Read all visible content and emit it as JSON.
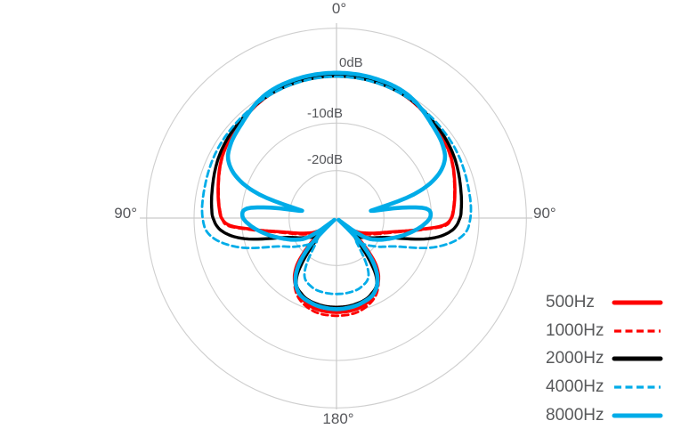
{
  "axis_labels": {
    "top": "0°",
    "left": "90°",
    "right": "90°",
    "bottom": "180°"
  },
  "radial_labels": {
    "r0": "0dB",
    "r10": "-10dB",
    "r20": "-20dB"
  },
  "colors": {
    "red": "#fe0000",
    "blue": "#00ace8",
    "black": "#000000",
    "grid": "#cfcfcf",
    "axis": "#c9c9c9",
    "text": "#55565a"
  },
  "legend": {
    "items": [
      {
        "label": "500Hz"
      },
      {
        "label": "1000Hz"
      },
      {
        "label": "2000Hz"
      },
      {
        "label": "4000Hz"
      },
      {
        "label": "8000Hz"
      }
    ]
  },
  "chart_data": {
    "type": "line",
    "projection": "polar",
    "title": "",
    "radial_axis": {
      "unit": "dB",
      "tick_labels": [
        "0dB",
        "-10dB",
        "-20dB"
      ],
      "tick_values_db": [
        0,
        -10,
        -20
      ],
      "min_db": -30,
      "ring_step_db": 10,
      "rings_db": [
        10,
        0,
        -10,
        -20
      ]
    },
    "angular_axis": {
      "tick_labels": [
        "0°",
        "90°",
        "180°",
        "90°"
      ],
      "tick_angles_deg": [
        0,
        90,
        180,
        270
      ]
    },
    "symmetric_about_0_180_axis": true,
    "series": [
      {
        "name": "500Hz",
        "color": "#fe0000",
        "line": "solid",
        "width": 3.6,
        "points_deg_db": [
          [
            0,
            0
          ],
          [
            15,
            -0.1
          ],
          [
            30,
            -0.5
          ],
          [
            45,
            -1.5
          ],
          [
            60,
            -2.5
          ],
          [
            75,
            -4.2
          ],
          [
            85,
            -5.2
          ],
          [
            90,
            -5.8
          ],
          [
            94,
            -7.5
          ],
          [
            98,
            -12.5
          ],
          [
            104,
            -18
          ],
          [
            112,
            -21.5
          ],
          [
            121,
            -24
          ],
          [
            130,
            -25.5
          ],
          [
            140,
            -17
          ],
          [
            150,
            -13
          ],
          [
            164,
            -10.6
          ],
          [
            180,
            -10.1
          ]
        ]
      },
      {
        "name": "1000Hz",
        "color": "#fe0000",
        "line": "dashed",
        "width": 2.8,
        "points_deg_db": [
          [
            0,
            -0.1
          ],
          [
            15,
            -0.2
          ],
          [
            30,
            -0.6
          ],
          [
            45,
            -1.6
          ],
          [
            60,
            -2.6
          ],
          [
            75,
            -4.3
          ],
          [
            85,
            -5.3
          ],
          [
            90,
            -5.9
          ],
          [
            94,
            -7
          ],
          [
            98,
            -12
          ],
          [
            104,
            -17.5
          ],
          [
            112,
            -21
          ],
          [
            122,
            -23.5
          ],
          [
            132,
            -25
          ],
          [
            142,
            -16.5
          ],
          [
            152,
            -12
          ],
          [
            166,
            -9.8
          ],
          [
            180,
            -9.4
          ]
        ]
      },
      {
        "name": "2000Hz",
        "color": "#000000",
        "line": "solid",
        "width": 3.4,
        "points_deg_db": [
          [
            0,
            -0.1
          ],
          [
            15,
            -0.2
          ],
          [
            30,
            -0.5
          ],
          [
            45,
            -1.2
          ],
          [
            60,
            -1.9
          ],
          [
            75,
            -3.0
          ],
          [
            85,
            -3.6
          ],
          [
            90,
            -4.0
          ],
          [
            96,
            -5.5
          ],
          [
            102,
            -9.5
          ],
          [
            110,
            -18
          ],
          [
            120,
            -21.7
          ],
          [
            128,
            -23.4
          ],
          [
            136,
            -24.5
          ],
          [
            146,
            -15
          ],
          [
            156,
            -12.3
          ],
          [
            168,
            -11.4
          ],
          [
            180,
            -11.2
          ]
        ]
      },
      {
        "name": "4000Hz",
        "color": "#00ace8",
        "line": "dashed",
        "width": 2.8,
        "points_deg_db": [
          [
            0,
            -0.2
          ],
          [
            15,
            -0.3
          ],
          [
            30,
            -0.55
          ],
          [
            45,
            -0.85
          ],
          [
            60,
            -1.05
          ],
          [
            75,
            -1.45
          ],
          [
            90,
            -1.8
          ],
          [
            98,
            -3.2
          ],
          [
            106,
            -8
          ],
          [
            115,
            -15.8
          ],
          [
            125,
            -19.5
          ],
          [
            133,
            -21.8
          ],
          [
            140,
            -23.5
          ],
          [
            150,
            -16.5
          ],
          [
            160,
            -14.6
          ],
          [
            170,
            -14.1
          ],
          [
            180,
            -14
          ]
        ]
      },
      {
        "name": "8000Hz",
        "color": "#00ace8",
        "line": "solid",
        "width": 4.6,
        "points_deg_db": [
          [
            0,
            0.6
          ],
          [
            15,
            0.5
          ],
          [
            30,
            0
          ],
          [
            45,
            -1.8
          ],
          [
            55,
            -2.8
          ],
          [
            62,
            -4.2
          ],
          [
            68,
            -7.5
          ],
          [
            73,
            -13
          ],
          [
            78,
            -22.6
          ],
          [
            81,
            -16
          ],
          [
            84,
            -11
          ],
          [
            89,
            -10.2
          ],
          [
            95,
            -11.8
          ],
          [
            102,
            -14.5
          ],
          [
            110,
            -17.6
          ],
          [
            118,
            -20.3
          ],
          [
            124,
            -22.8
          ],
          [
            131,
            -29.4
          ],
          [
            137,
            -21
          ],
          [
            144,
            -15.5
          ],
          [
            153,
            -12.4
          ],
          [
            164,
            -11.3
          ],
          [
            174,
            -10.9
          ],
          [
            180,
            -10.8
          ]
        ]
      }
    ]
  }
}
